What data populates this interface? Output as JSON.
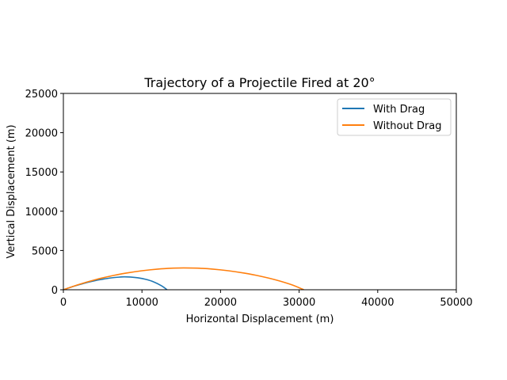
{
  "chart_data": {
    "type": "line",
    "title": "Trajectory of a Projectile Fired at 20°",
    "xlabel": "Horizontal Displacement (m)",
    "ylabel": "Vertical Displacement (m)",
    "xlim": [
      0,
      50000
    ],
    "ylim": [
      0,
      25000
    ],
    "xticks": [
      "0",
      "10000",
      "20000",
      "30000",
      "40000",
      "50000"
    ],
    "yticks": [
      "0",
      "5000",
      "10000",
      "15000",
      "20000",
      "25000"
    ],
    "grid": false,
    "legend_position": "top-right",
    "series": [
      {
        "name": "With Drag",
        "color": "#1f77b4",
        "x": [
          0,
          1000,
          2000,
          3000,
          4000,
          5000,
          6000,
          7000,
          7700,
          8500,
          9500,
          10500,
          11500,
          12500,
          13200
        ],
        "y": [
          0,
          340,
          640,
          920,
          1150,
          1340,
          1500,
          1600,
          1640,
          1620,
          1520,
          1320,
          1000,
          500,
          0
        ]
      },
      {
        "name": "Without Drag",
        "color": "#ff7f0e",
        "x": [
          0,
          2000,
          4000,
          6000,
          8000,
          10000,
          12000,
          14000,
          15300,
          17000,
          19000,
          21000,
          23000,
          25000,
          27000,
          29000,
          30600
        ],
        "y": [
          0,
          680,
          1260,
          1740,
          2120,
          2420,
          2630,
          2750,
          2780,
          2750,
          2630,
          2420,
          2120,
          1740,
          1260,
          650,
          0
        ]
      }
    ]
  }
}
